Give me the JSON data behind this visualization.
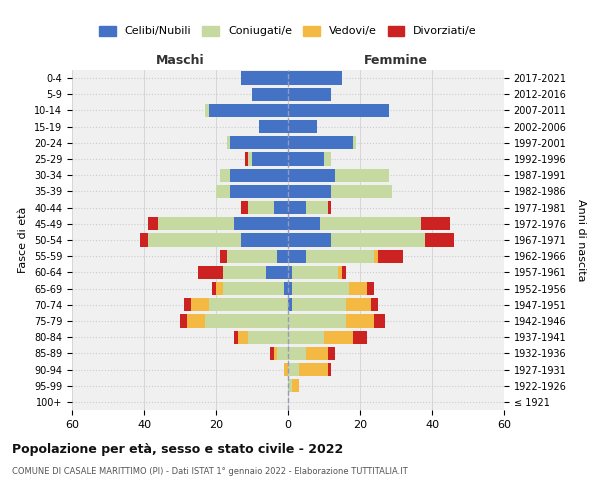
{
  "age_groups": [
    "100+",
    "95-99",
    "90-94",
    "85-89",
    "80-84",
    "75-79",
    "70-74",
    "65-69",
    "60-64",
    "55-59",
    "50-54",
    "45-49",
    "40-44",
    "35-39",
    "30-34",
    "25-29",
    "20-24",
    "15-19",
    "10-14",
    "5-9",
    "0-4"
  ],
  "birth_years": [
    "≤ 1921",
    "1922-1926",
    "1927-1931",
    "1932-1936",
    "1937-1941",
    "1942-1946",
    "1947-1951",
    "1952-1956",
    "1957-1961",
    "1962-1966",
    "1967-1971",
    "1972-1976",
    "1977-1981",
    "1982-1986",
    "1987-1991",
    "1992-1996",
    "1997-2001",
    "2002-2006",
    "2007-2011",
    "2012-2016",
    "2017-2021"
  ],
  "males": {
    "celibi": [
      0,
      0,
      0,
      0,
      0,
      0,
      0,
      1,
      6,
      3,
      13,
      15,
      4,
      16,
      16,
      10,
      16,
      8,
      22,
      10,
      13
    ],
    "coniugati": [
      0,
      0,
      0,
      3,
      11,
      23,
      22,
      17,
      12,
      14,
      26,
      21,
      7,
      4,
      3,
      1,
      1,
      0,
      1,
      0,
      0
    ],
    "vedovi": [
      0,
      0,
      1,
      1,
      3,
      5,
      5,
      2,
      0,
      0,
      0,
      0,
      0,
      0,
      0,
      0,
      0,
      0,
      0,
      0,
      0
    ],
    "divorziati": [
      0,
      0,
      0,
      1,
      1,
      2,
      2,
      1,
      7,
      2,
      2,
      3,
      2,
      0,
      0,
      1,
      0,
      0,
      0,
      0,
      0
    ]
  },
  "females": {
    "nubili": [
      0,
      0,
      0,
      0,
      0,
      0,
      1,
      1,
      1,
      5,
      12,
      9,
      5,
      12,
      13,
      10,
      18,
      8,
      28,
      12,
      15
    ],
    "coniugate": [
      0,
      1,
      3,
      5,
      10,
      16,
      15,
      16,
      13,
      19,
      26,
      28,
      6,
      17,
      15,
      2,
      1,
      0,
      0,
      0,
      0
    ],
    "vedove": [
      0,
      2,
      8,
      6,
      8,
      8,
      7,
      5,
      1,
      1,
      0,
      0,
      0,
      0,
      0,
      0,
      0,
      0,
      0,
      0,
      0
    ],
    "divorziate": [
      0,
      0,
      1,
      2,
      4,
      3,
      2,
      2,
      1,
      7,
      8,
      8,
      1,
      0,
      0,
      0,
      0,
      0,
      0,
      0,
      0
    ]
  },
  "colors": {
    "celibi": "#4472c4",
    "coniugati": "#c5d9a0",
    "vedovi": "#f4b942",
    "divorziati": "#cc2222"
  },
  "xlim": 60,
  "title": "Popolazione per età, sesso e stato civile - 2022",
  "subtitle": "COMUNE DI CASALE MARITTIMO (PI) - Dati ISTAT 1° gennaio 2022 - Elaborazione TUTTITALIA.IT",
  "xlabel_left": "Maschi",
  "xlabel_right": "Femmine",
  "ylabel_left": "Fasce di età",
  "ylabel_right": "Anni di nascita",
  "legend_labels": [
    "Celibi/Nubili",
    "Coniugati/e",
    "Vedovi/e",
    "Divorziati/e"
  ],
  "bg_color": "#f0f0f0"
}
